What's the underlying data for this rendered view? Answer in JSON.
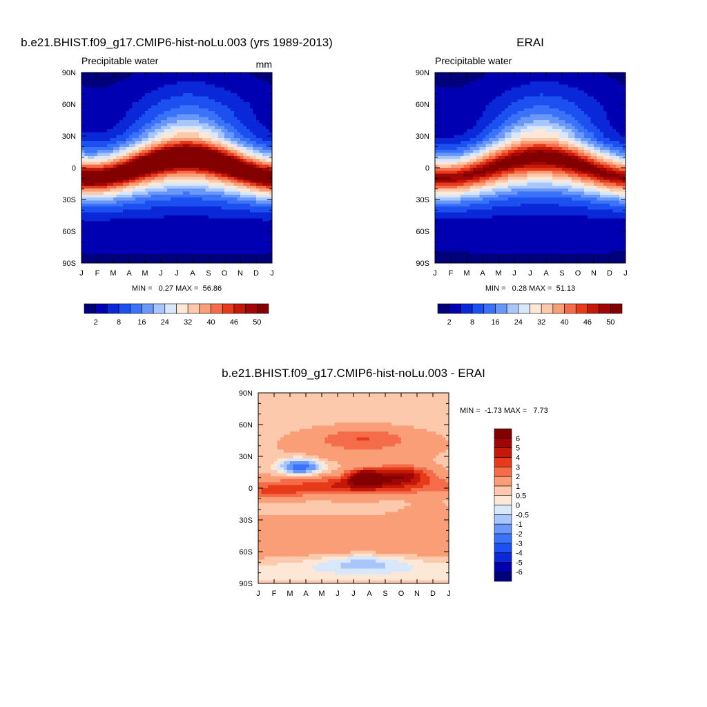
{
  "chart_data": [
    {
      "type": "heatmap",
      "title": "b.e21.BHIST.f09_g17.CMIP6-hist-noLu.003 (yrs 1989-2013)",
      "subtitle": "Precipitable water",
      "units": "mm",
      "x_ticks": [
        "J",
        "F",
        "M",
        "A",
        "M",
        "J",
        "J",
        "A",
        "S",
        "O",
        "N",
        "D",
        "J"
      ],
      "y_ticks": [
        "90N",
        "60N",
        "30N",
        "0",
        "30S",
        "60S",
        "90S"
      ],
      "ylim": [
        -90,
        90
      ],
      "stats": "MIN =   0.27 MAX =  56.86",
      "min": 0.27,
      "max": 56.86,
      "colorbar": {
        "levels": [
          2,
          5,
          8,
          12,
          16,
          20,
          24,
          28,
          32,
          36,
          40,
          43,
          46,
          48,
          50
        ],
        "labels": [
          "2",
          "8",
          "16",
          "24",
          "32",
          "40",
          "46",
          "50"
        ],
        "colors": [
          "#00007a",
          "#0000b2",
          "#0a28d8",
          "#1c50f0",
          "#3a72f8",
          "#6a98fa",
          "#a8c6fa",
          "#d8e8fa",
          "#fde7d6",
          "#fcc9ac",
          "#fa9e78",
          "#f56c4a",
          "#e63a1a",
          "#c41808",
          "#a00606",
          "#820000"
        ]
      },
      "model": "hist-noLu"
    },
    {
      "type": "heatmap",
      "title": "ERAI",
      "subtitle": "Precipitable water",
      "x_ticks": [
        "J",
        "F",
        "M",
        "A",
        "M",
        "J",
        "J",
        "A",
        "S",
        "O",
        "N",
        "D",
        "J"
      ],
      "y_ticks": [
        "90N",
        "60N",
        "30N",
        "0",
        "30S",
        "60S",
        "90S"
      ],
      "ylim": [
        -90,
        90
      ],
      "stats": "MIN =   0.28 MAX =  51.13",
      "min": 0.28,
      "max": 51.13,
      "colorbar": {
        "levels": [
          2,
          5,
          8,
          12,
          16,
          20,
          24,
          28,
          32,
          36,
          40,
          43,
          46,
          48,
          50
        ],
        "labels": [
          "2",
          "8",
          "16",
          "24",
          "32",
          "40",
          "46",
          "50"
        ],
        "colors": [
          "#00007a",
          "#0000b2",
          "#0a28d8",
          "#1c50f0",
          "#3a72f8",
          "#6a98fa",
          "#a8c6fa",
          "#d8e8fa",
          "#fde7d6",
          "#fcc9ac",
          "#fa9e78",
          "#f56c4a",
          "#e63a1a",
          "#c41808",
          "#a00606",
          "#820000"
        ]
      },
      "model": "erai"
    },
    {
      "type": "heatmap",
      "title": "b.e21.BHIST.f09_g17.CMIP6-hist-noLu.003 - ERAI",
      "x_ticks": [
        "J",
        "F",
        "M",
        "A",
        "M",
        "J",
        "J",
        "A",
        "S",
        "O",
        "N",
        "D",
        "J"
      ],
      "y_ticks": [
        "90N",
        "60N",
        "30N",
        "0",
        "30S",
        "60S",
        "90S"
      ],
      "ylim": [
        -90,
        90
      ],
      "stats": "MIN =  -1.73 MAX =   7.73",
      "min": -1.73,
      "max": 7.73,
      "colorbar": {
        "levels": [
          -6,
          -5,
          -4,
          -3,
          -2,
          -1,
          -0.5,
          0,
          0.5,
          1,
          2,
          3,
          4,
          5,
          6
        ],
        "labels": [
          "-6",
          "-5",
          "-4",
          "-3",
          "-2",
          "-1",
          "-0.5",
          "0",
          "0.5",
          "1",
          "2",
          "3",
          "4",
          "5",
          "6"
        ],
        "colors": [
          "#00007a",
          "#0000b2",
          "#0a28d8",
          "#1c50f0",
          "#3a72f8",
          "#6a98fa",
          "#a8c6fa",
          "#d8e8fa",
          "#fde7d6",
          "#fcc9ac",
          "#fa9e78",
          "#f56c4a",
          "#e63a1a",
          "#c41808",
          "#a00606",
          "#820000"
        ]
      },
      "model": "diff"
    }
  ]
}
